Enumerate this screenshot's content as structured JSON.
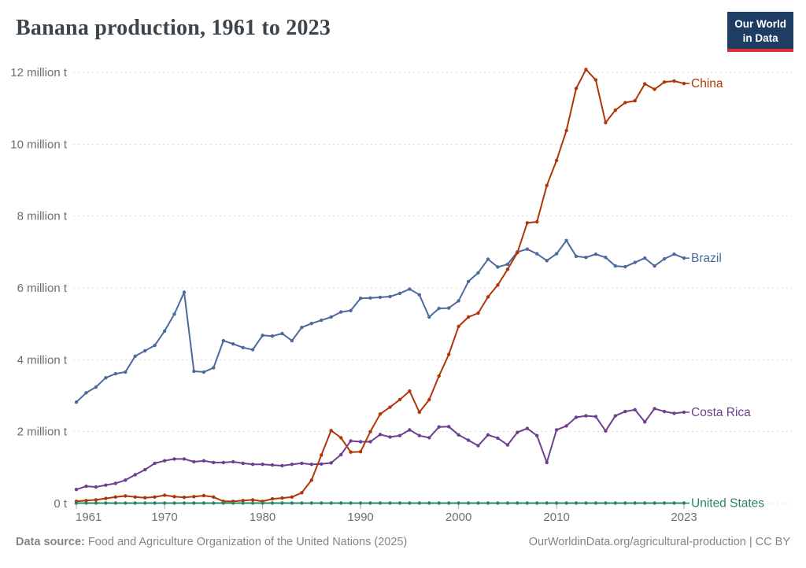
{
  "header": {
    "title": "Banana production, 1961 to 2023",
    "title_color": "#3d454c",
    "logo": {
      "line1": "Our World",
      "line2": "in Data",
      "bg_color": "#1d3d63",
      "accent_color": "#dc2f36"
    }
  },
  "footer": {
    "source_label": "Data source:",
    "source_text": " Food and Agriculture Organization of the United Nations (2025)",
    "attribution": "OurWorldinData.org/agricultural-production | CC BY",
    "text_color": "#858585"
  },
  "axis_style": {
    "tick_text_color": "#6e6e6e",
    "grid_color": "#d9d9d9",
    "tick_mark_color": "#a5a5a5"
  },
  "chart_data": {
    "type": "line",
    "title": "Banana production, 1961 to 2023",
    "unit": "million t",
    "grid": "horizontal-dashed",
    "legend_position": "right-edge-labels",
    "x_range": [
      1961,
      2023
    ],
    "ylim": [
      0,
      12
    ],
    "x_ticks": [
      {
        "year": 1961,
        "label": "1961"
      },
      {
        "year": 1970,
        "label": "1970"
      },
      {
        "year": 1980,
        "label": "1980"
      },
      {
        "year": 1990,
        "label": "1990"
      },
      {
        "year": 2000,
        "label": "2000"
      },
      {
        "year": 2010,
        "label": "2010"
      },
      {
        "year": 2023,
        "label": "2023"
      }
    ],
    "y_ticks": [
      {
        "value": 0,
        "label": "0 t"
      },
      {
        "value": 2,
        "label": "2 million t"
      },
      {
        "value": 4,
        "label": "4 million t"
      },
      {
        "value": 6,
        "label": "6 million t"
      },
      {
        "value": 8,
        "label": "8 million t"
      },
      {
        "value": 10,
        "label": "10 million t"
      },
      {
        "value": 12,
        "label": "12 million t"
      }
    ],
    "series": [
      {
        "name": "Brazil",
        "color": "#4c6a9c",
        "values": [
          2.82,
          3.08,
          3.24,
          3.5,
          3.61,
          3.66,
          4.1,
          4.25,
          4.4,
          4.8,
          5.27,
          5.88,
          3.68,
          3.66,
          3.78,
          4.53,
          4.44,
          4.34,
          4.28,
          4.68,
          4.66,
          4.73,
          4.53,
          4.9,
          5.01,
          5.1,
          5.19,
          5.33,
          5.37,
          5.71,
          5.72,
          5.74,
          5.76,
          5.85,
          5.97,
          5.81,
          5.19,
          5.43,
          5.44,
          5.64,
          6.18,
          6.42,
          6.8,
          6.58,
          6.66,
          7.0,
          7.08,
          6.95,
          6.76,
          6.95,
          7.32,
          6.88,
          6.85,
          6.94,
          6.85,
          6.61,
          6.59,
          6.71,
          6.83,
          6.61,
          6.81,
          6.94,
          6.83
        ]
      },
      {
        "name": "Costa Rica",
        "color": "#6d3e91",
        "values": [
          0.39,
          0.48,
          0.46,
          0.51,
          0.56,
          0.65,
          0.8,
          0.94,
          1.12,
          1.19,
          1.24,
          1.24,
          1.16,
          1.19,
          1.14,
          1.14,
          1.16,
          1.12,
          1.09,
          1.09,
          1.07,
          1.05,
          1.09,
          1.12,
          1.09,
          1.1,
          1.13,
          1.36,
          1.74,
          1.72,
          1.72,
          1.92,
          1.85,
          1.89,
          2.05,
          1.89,
          1.83,
          2.13,
          2.14,
          1.91,
          1.76,
          1.61,
          1.91,
          1.82,
          1.63,
          1.98,
          2.09,
          1.89,
          1.14,
          2.05,
          2.16,
          2.4,
          2.44,
          2.42,
          2.02,
          2.44,
          2.56,
          2.61,
          2.27,
          2.64,
          2.56,
          2.51,
          2.54
        ]
      },
      {
        "name": "China",
        "color": "#b13507",
        "values": [
          0.06,
          0.08,
          0.1,
          0.14,
          0.18,
          0.21,
          0.18,
          0.16,
          0.18,
          0.23,
          0.19,
          0.17,
          0.19,
          0.22,
          0.18,
          0.06,
          0.06,
          0.08,
          0.1,
          0.06,
          0.13,
          0.15,
          0.18,
          0.3,
          0.65,
          1.35,
          2.03,
          1.83,
          1.43,
          1.44,
          2.0,
          2.49,
          2.68,
          2.89,
          3.13,
          2.54,
          2.89,
          3.55,
          4.15,
          4.93,
          5.19,
          5.3,
          5.75,
          6.08,
          6.52,
          6.98,
          7.81,
          7.84,
          8.85,
          9.55,
          10.38,
          11.55,
          12.08,
          11.79,
          10.6,
          10.95,
          11.16,
          11.21,
          11.68,
          11.53,
          11.73,
          11.76,
          11.69
        ]
      },
      {
        "name": "United States",
        "color": "#2c8465",
        "values": [
          0.01,
          0.01,
          0.01,
          0.01,
          0.01,
          0.01,
          0.01,
          0.01,
          0.01,
          0.01,
          0.01,
          0.01,
          0.01,
          0.01,
          0.01,
          0.01,
          0.01,
          0.01,
          0.01,
          0.01,
          0.01,
          0.01,
          0.01,
          0.01,
          0.01,
          0.01,
          0.01,
          0.01,
          0.01,
          0.01,
          0.01,
          0.01,
          0.01,
          0.01,
          0.01,
          0.01,
          0.01,
          0.01,
          0.01,
          0.01,
          0.01,
          0.01,
          0.01,
          0.01,
          0.01,
          0.01,
          0.01,
          0.01,
          0.01,
          0.01,
          0.01,
          0.01,
          0.01,
          0.01,
          0.01,
          0.01,
          0.01,
          0.01,
          0.01,
          0.01,
          0.01,
          0.01,
          0.01
        ]
      }
    ]
  }
}
